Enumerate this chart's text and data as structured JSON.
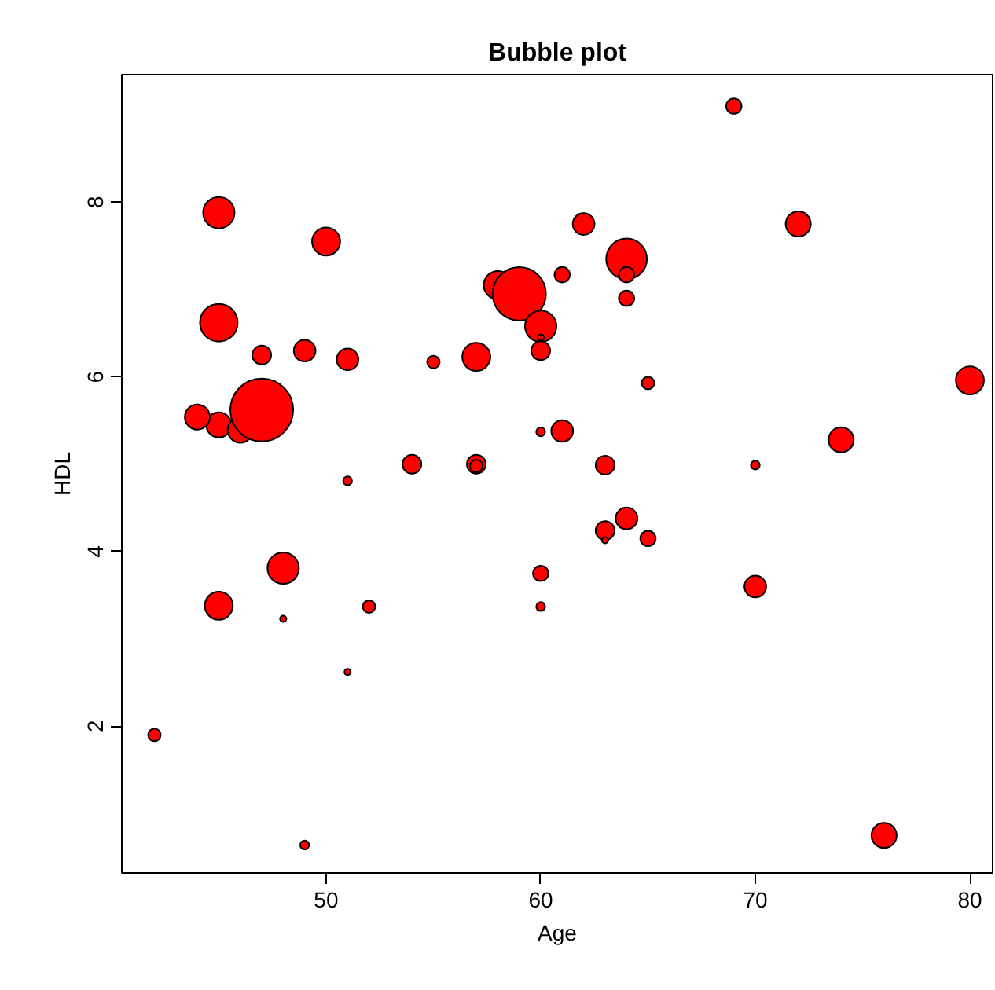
{
  "chart_data": {
    "type": "bubble",
    "title": "Bubble plot",
    "xlabel": "Age",
    "ylabel": "HDL",
    "x": [
      42,
      45,
      45,
      45,
      44,
      46,
      47,
      47,
      49,
      51,
      50,
      55,
      57,
      58,
      59,
      60,
      60,
      60,
      61,
      62,
      64,
      64,
      64,
      65,
      69,
      72,
      80,
      60,
      61,
      63,
      70,
      74,
      54,
      57,
      57,
      51,
      48,
      45,
      48,
      52,
      60,
      60,
      51,
      49,
      64,
      63,
      63,
      65,
      70,
      76
    ],
    "series": [
      {
        "color": "#ff0000",
        "values": [
          1.9,
          7.88,
          6.62,
          5.45,
          5.54,
          5.39,
          5.62,
          6.25,
          6.3,
          6.2,
          7.55,
          6.17,
          6.23,
          7.05,
          6.95,
          6.58,
          6.3,
          6.45,
          7.17,
          7.75,
          7.35,
          7.17,
          6.9,
          5.93,
          9.1,
          7.75,
          5.96,
          5.37,
          5.38,
          4.99,
          4.99,
          5.28,
          5.0,
          5.0,
          4.98,
          4.81,
          3.81,
          3.38,
          3.23,
          3.37,
          3.75,
          3.37,
          2.62,
          0.64,
          4.38,
          4.24,
          4.13,
          4.15,
          3.6,
          0.75
        ],
        "sizes": [
          0.04,
          0.25,
          0.36,
          0.16,
          0.16,
          0.16,
          1,
          0.09,
          0.12,
          0.12,
          0.2,
          0.04,
          0.2,
          0.2,
          0.72,
          0.25,
          0.09,
          0.01,
          0.06,
          0.12,
          0.42,
          0.06,
          0.06,
          0.04,
          0.06,
          0.16,
          0.2,
          0.02,
          0.12,
          0.09,
          0.02,
          0.16,
          0.09,
          0.09,
          0.04,
          0.02,
          0.25,
          0.2,
          0.01,
          0.04,
          0.06,
          0.02,
          0.01,
          0.02,
          0.12,
          0.09,
          0.01,
          0.06,
          0.12,
          0.16
        ]
      }
    ],
    "xlim": [
      40.48,
      81.06
    ],
    "ylim": [
      0.32,
      9.46
    ],
    "xticks": [
      50,
      60,
      70,
      80
    ],
    "yticks": [
      2,
      4,
      6,
      8
    ],
    "grid": false,
    "marker": "circle"
  }
}
